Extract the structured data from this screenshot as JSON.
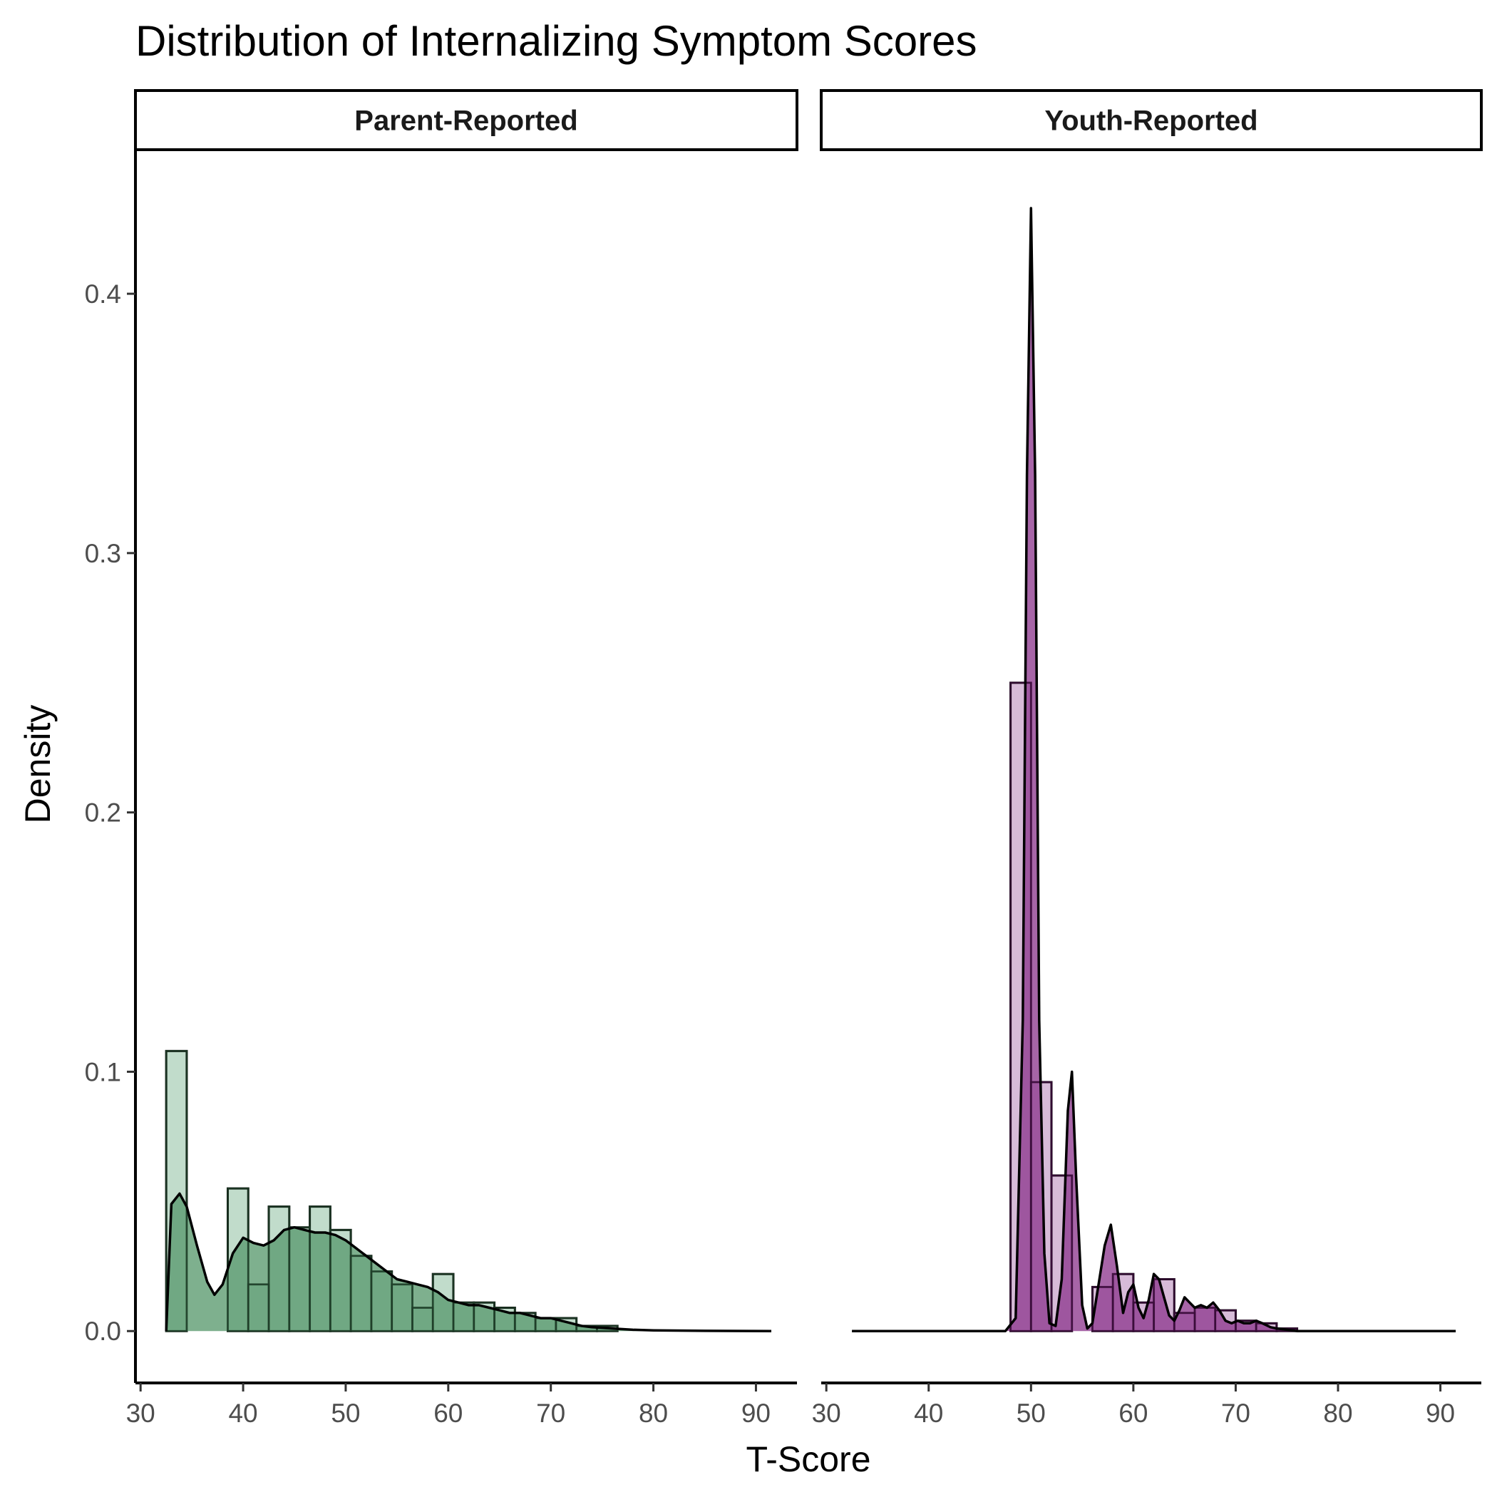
{
  "chart_data": {
    "type": "histogram-density-facets",
    "title": "Distribution of Internalizing Symptom Scores",
    "xlabel": "T-Score",
    "ylabel": "Density",
    "xlim": [
      29.5,
      94
    ],
    "ylim": [
      -0.02,
      0.455
    ],
    "x_ticks": [
      30,
      40,
      50,
      60,
      70,
      80,
      90
    ],
    "y_ticks": [
      0.0,
      0.1,
      0.2,
      0.3,
      0.4
    ],
    "y_tick_labels": [
      "0.0",
      "0.1",
      "0.2",
      "0.3",
      "0.4"
    ],
    "grid": false,
    "legend": "none",
    "panels": [
      {
        "label": "Parent-Reported",
        "colors": {
          "hist_fill": "#c1dccb",
          "density_fill": "#5a9a6e",
          "bar_outline": "#1f3d28",
          "line": "#000000"
        },
        "bin_width": 2,
        "histogram": [
          {
            "x0": 32.5,
            "density": 0.108
          },
          {
            "x0": 34.5,
            "density": 0.0
          },
          {
            "x0": 36.5,
            "density": 0.0
          },
          {
            "x0": 38.5,
            "density": 0.055
          },
          {
            "x0": 40.5,
            "density": 0.018
          },
          {
            "x0": 42.5,
            "density": 0.048
          },
          {
            "x0": 44.5,
            "density": 0.04
          },
          {
            "x0": 46.5,
            "density": 0.048
          },
          {
            "x0": 48.5,
            "density": 0.039
          },
          {
            "x0": 50.5,
            "density": 0.029
          },
          {
            "x0": 52.5,
            "density": 0.023
          },
          {
            "x0": 54.5,
            "density": 0.018
          },
          {
            "x0": 56.5,
            "density": 0.009
          },
          {
            "x0": 58.5,
            "density": 0.022
          },
          {
            "x0": 60.5,
            "density": 0.011
          },
          {
            "x0": 62.5,
            "density": 0.011
          },
          {
            "x0": 64.5,
            "density": 0.009
          },
          {
            "x0": 66.5,
            "density": 0.007
          },
          {
            "x0": 68.5,
            "density": 0.005
          },
          {
            "x0": 70.5,
            "density": 0.005
          },
          {
            "x0": 72.5,
            "density": 0.002
          },
          {
            "x0": 74.5,
            "density": 0.002
          }
        ],
        "density": [
          [
            32.5,
            0.0
          ],
          [
            33.0,
            0.049
          ],
          [
            33.8,
            0.053
          ],
          [
            34.5,
            0.048
          ],
          [
            35.5,
            0.033
          ],
          [
            36.5,
            0.019
          ],
          [
            37.2,
            0.014
          ],
          [
            38.0,
            0.018
          ],
          [
            39.0,
            0.03
          ],
          [
            40.0,
            0.036
          ],
          [
            41.0,
            0.034
          ],
          [
            42.0,
            0.033
          ],
          [
            43.0,
            0.035
          ],
          [
            44.0,
            0.039
          ],
          [
            45.0,
            0.04
          ],
          [
            46.0,
            0.039
          ],
          [
            47.0,
            0.038
          ],
          [
            48.0,
            0.038
          ],
          [
            49.0,
            0.037
          ],
          [
            50.0,
            0.035
          ],
          [
            51.0,
            0.032
          ],
          [
            52.0,
            0.029
          ],
          [
            53.0,
            0.026
          ],
          [
            54.0,
            0.023
          ],
          [
            55.0,
            0.02
          ],
          [
            56.0,
            0.019
          ],
          [
            57.0,
            0.018
          ],
          [
            58.0,
            0.017
          ],
          [
            59.0,
            0.015
          ],
          [
            60.0,
            0.012
          ],
          [
            61.0,
            0.011
          ],
          [
            62.0,
            0.01
          ],
          [
            63.0,
            0.01
          ],
          [
            64.0,
            0.009
          ],
          [
            65.0,
            0.008
          ],
          [
            66.0,
            0.007
          ],
          [
            67.0,
            0.007
          ],
          [
            68.0,
            0.006
          ],
          [
            69.0,
            0.005
          ],
          [
            70.0,
            0.005
          ],
          [
            71.0,
            0.004
          ],
          [
            72.0,
            0.003
          ],
          [
            73.0,
            0.002
          ],
          [
            74.0,
            0.0015
          ],
          [
            76.0,
            0.001
          ],
          [
            78.0,
            0.0005
          ],
          [
            80.0,
            0.0003
          ],
          [
            85.0,
            0.0001
          ],
          [
            91.5,
            0.0
          ]
        ]
      },
      {
        "label": "Youth-Reported",
        "colors": {
          "hist_fill": "#d7bbd8",
          "density_fill": "#8e3a8e",
          "bar_outline": "#3a0d3a",
          "line": "#000000"
        },
        "bin_width": 2,
        "histogram": [
          {
            "x0": 48.0,
            "density": 0.25
          },
          {
            "x0": 50.0,
            "density": 0.096
          },
          {
            "x0": 52.0,
            "density": 0.06
          },
          {
            "x0": 54.0,
            "density": 0.0
          },
          {
            "x0": 56.0,
            "density": 0.017
          },
          {
            "x0": 58.0,
            "density": 0.022
          },
          {
            "x0": 60.0,
            "density": 0.011
          },
          {
            "x0": 62.0,
            "density": 0.02
          },
          {
            "x0": 64.0,
            "density": 0.007
          },
          {
            "x0": 66.0,
            "density": 0.009
          },
          {
            "x0": 68.0,
            "density": 0.008
          },
          {
            "x0": 70.0,
            "density": 0.004
          },
          {
            "x0": 72.0,
            "density": 0.003
          },
          {
            "x0": 74.0,
            "density": 0.001
          }
        ],
        "density": [
          [
            32.5,
            0.0
          ],
          [
            47.5,
            0.0
          ],
          [
            48.5,
            0.005
          ],
          [
            49.2,
            0.12
          ],
          [
            49.6,
            0.33
          ],
          [
            50.0,
            0.433
          ],
          [
            50.4,
            0.33
          ],
          [
            50.8,
            0.12
          ],
          [
            51.3,
            0.03
          ],
          [
            51.8,
            0.003
          ],
          [
            52.4,
            0.002
          ],
          [
            53.0,
            0.02
          ],
          [
            53.6,
            0.085
          ],
          [
            54.0,
            0.1
          ],
          [
            54.4,
            0.06
          ],
          [
            55.0,
            0.01
          ],
          [
            55.5,
            0.001
          ],
          [
            56.0,
            0.003
          ],
          [
            56.6,
            0.018
          ],
          [
            57.2,
            0.033
          ],
          [
            57.8,
            0.041
          ],
          [
            58.4,
            0.025
          ],
          [
            59.0,
            0.007
          ],
          [
            59.5,
            0.015
          ],
          [
            60.0,
            0.018
          ],
          [
            60.5,
            0.009
          ],
          [
            61.0,
            0.005
          ],
          [
            61.5,
            0.012
          ],
          [
            62.0,
            0.022
          ],
          [
            62.5,
            0.02
          ],
          [
            63.0,
            0.013
          ],
          [
            63.5,
            0.006
          ],
          [
            64.0,
            0.004
          ],
          [
            64.5,
            0.008
          ],
          [
            65.0,
            0.013
          ],
          [
            65.5,
            0.011
          ],
          [
            66.0,
            0.009
          ],
          [
            66.6,
            0.01
          ],
          [
            67.2,
            0.009
          ],
          [
            67.8,
            0.011
          ],
          [
            68.4,
            0.008
          ],
          [
            69.0,
            0.004
          ],
          [
            69.6,
            0.003
          ],
          [
            70.2,
            0.004
          ],
          [
            70.8,
            0.003
          ],
          [
            71.4,
            0.003
          ],
          [
            72.0,
            0.004
          ],
          [
            72.6,
            0.003
          ],
          [
            73.4,
            0.0015
          ],
          [
            74.0,
            0.001
          ],
          [
            75.0,
            0.0005
          ],
          [
            76.0,
            0.0
          ],
          [
            91.5,
            0.0
          ]
        ]
      }
    ]
  }
}
